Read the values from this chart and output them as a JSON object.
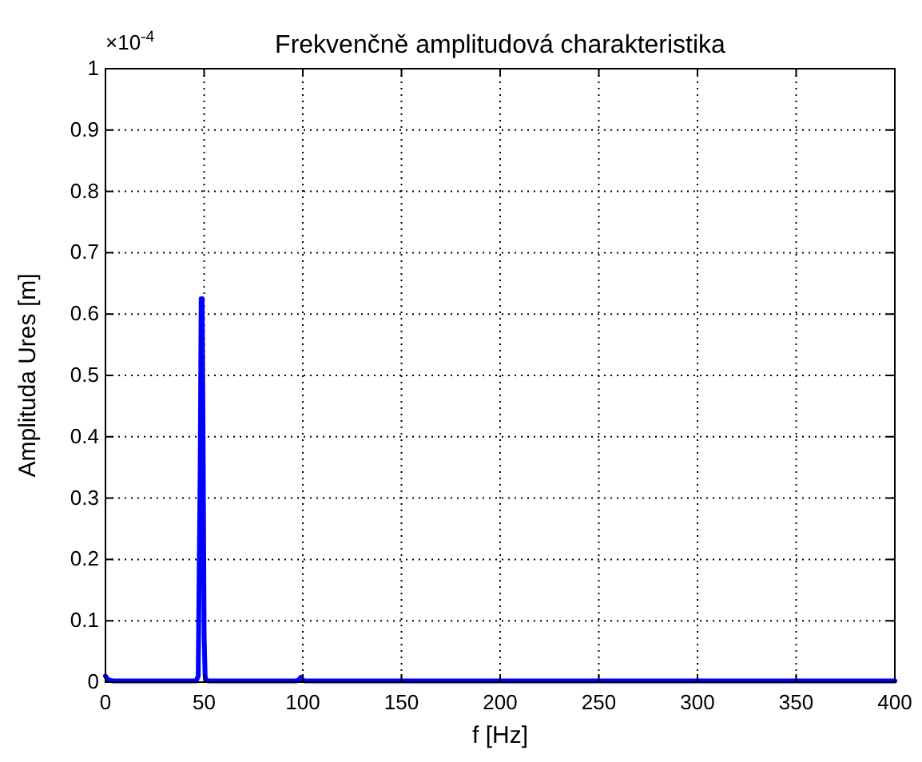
{
  "chart_data": {
    "type": "line",
    "title": "Frekvenčně amplitudová charakteristika",
    "xlabel": "f [Hz]",
    "ylabel": "Amplituda Ures [m]",
    "annotations": [
      "×10$^{-4}$"
    ],
    "x": [
      0,
      1,
      2,
      4,
      46,
      47,
      48,
      48.5,
      49,
      49.5,
      50,
      50.5,
      51,
      52,
      97,
      98,
      99,
      100,
      101,
      200,
      300,
      400
    ],
    "series": [
      {
        "color": "#0000ff",
        "values": [
          0.01,
          0.005,
          0.003,
          0.002,
          0.002,
          0.01,
          0.35,
          0.625,
          0.625,
          0.38,
          0.075,
          0.01,
          0.003,
          0.002,
          0.002,
          0.004,
          0.008,
          0.003,
          0.002,
          0.002,
          0.002,
          0.002
        ]
      }
    ],
    "xlim": [
      0,
      400
    ],
    "xticks": [
      0,
      50,
      100,
      150,
      200,
      250,
      300,
      350,
      400
    ],
    "ylim": [
      0,
      1
    ],
    "yticks": [
      0,
      0.1,
      0.2,
      0.3,
      0.4,
      0.5,
      0.6,
      0.7,
      0.8,
      0.9,
      1
    ],
    "grid": true,
    "line_style": "solid",
    "marker": "none"
  }
}
